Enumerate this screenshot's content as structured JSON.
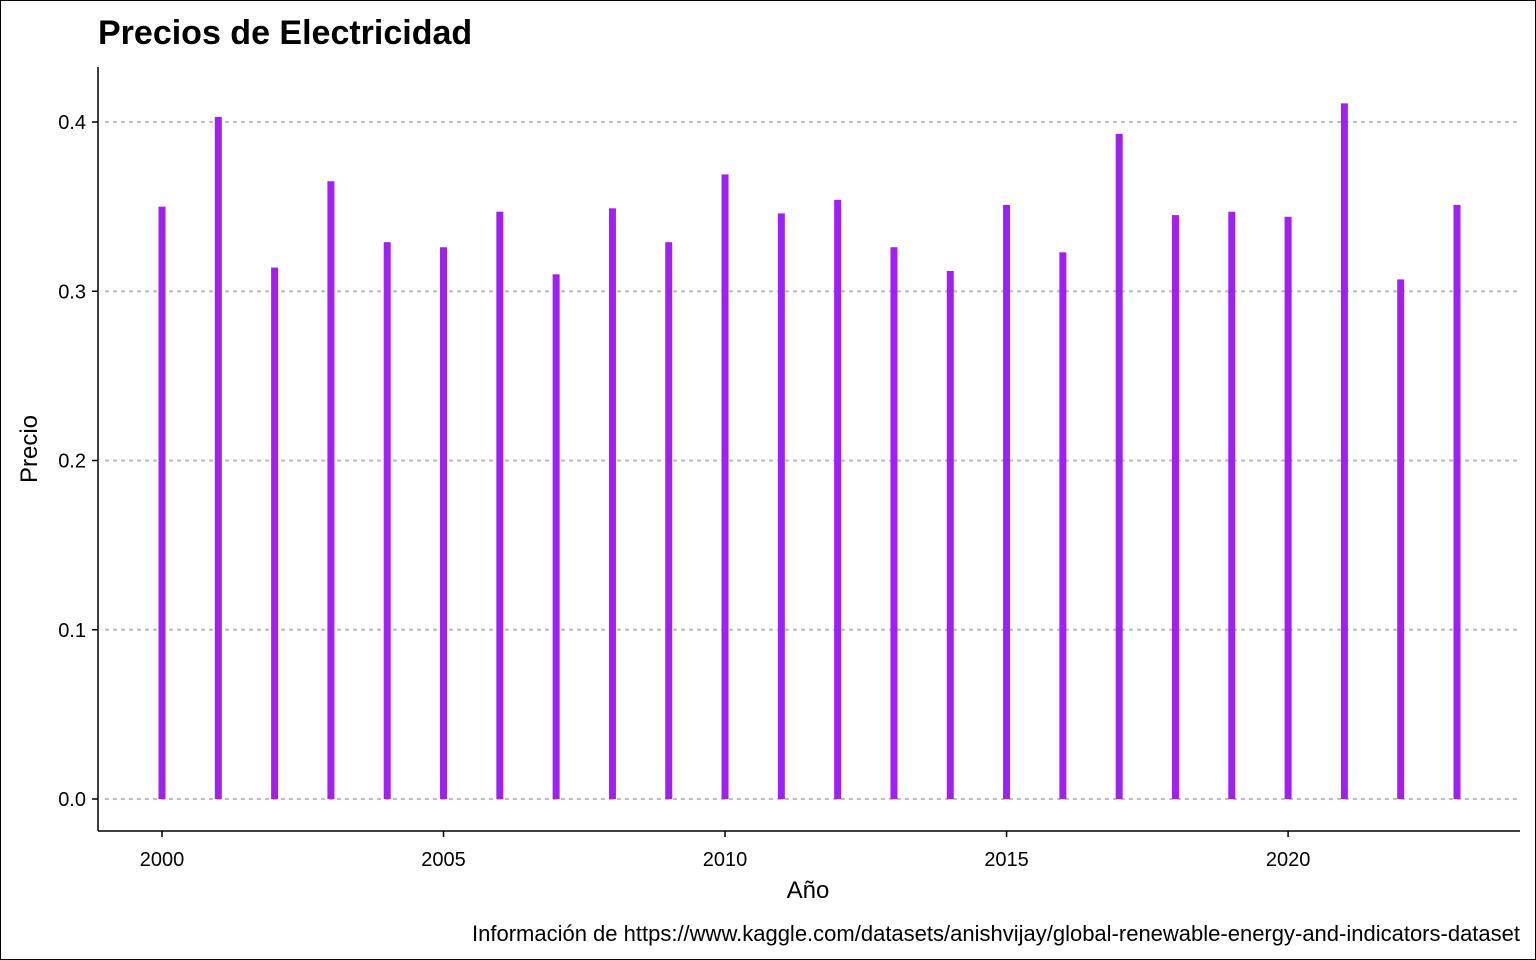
{
  "chart_data": {
    "type": "bar",
    "title": "Precios de Electricidad",
    "xlabel": "Año",
    "ylabel": "Precio",
    "caption": "Información de https://www.kaggle.com/datasets/anishvijay/global-renewable-energy-and-indicators-dataset",
    "x": [
      2000,
      2001,
      2002,
      2003,
      2004,
      2005,
      2006,
      2007,
      2008,
      2009,
      2010,
      2011,
      2012,
      2013,
      2014,
      2015,
      2016,
      2017,
      2018,
      2019,
      2020,
      2021,
      2022,
      2023
    ],
    "values": [
      0.35,
      0.403,
      0.314,
      0.365,
      0.329,
      0.326,
      0.347,
      0.31,
      0.349,
      0.329,
      0.369,
      0.346,
      0.354,
      0.326,
      0.312,
      0.351,
      0.323,
      0.393,
      0.345,
      0.347,
      0.344,
      0.411,
      0.307,
      0.351
    ],
    "xticks": [
      "2000",
      "2005",
      "2010",
      "2015",
      "2020"
    ],
    "yticks": [
      "0.0",
      "0.1",
      "0.2",
      "0.3",
      "0.4"
    ],
    "ylim": [
      0,
      0.4
    ],
    "xlim": [
      2000,
      2023
    ],
    "grid": "horizontal-dotted",
    "bar_color": "#A020F0",
    "grid_color": "#BEBEBE",
    "legend": "none"
  }
}
